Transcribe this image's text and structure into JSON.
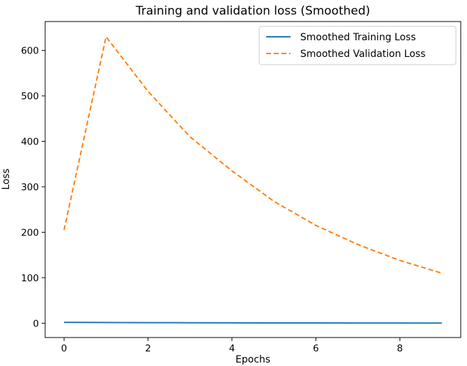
{
  "chart_data": {
    "type": "line",
    "title": "Training and validation loss (Smoothed)",
    "xlabel": "Epochs",
    "ylabel": "Loss",
    "xlim": [
      -0.45,
      9.45
    ],
    "ylim": [
      -31.5,
      663.5
    ],
    "x_ticks": [
      0,
      2,
      4,
      6,
      8
    ],
    "y_ticks": [
      0,
      100,
      200,
      300,
      400,
      500,
      600
    ],
    "x": [
      0,
      1,
      2,
      3,
      4,
      5,
      6,
      7,
      8,
      9
    ],
    "grid": false,
    "legend_position": "top-right",
    "series": [
      {
        "name": "Smoothed Training Loss",
        "color": "#1f77b4",
        "line_style": "solid",
        "values": [
          2.0,
          1.5,
          1.2,
          1.0,
          0.8,
          0.6,
          0.5,
          0.4,
          0.3,
          0.2
        ]
      },
      {
        "name": "Smoothed Validation Loss",
        "color": "#ff7f0e",
        "line_style": "dashed",
        "values": [
          205,
          630,
          510,
          410,
          335,
          268,
          215,
          173,
          138,
          110
        ]
      }
    ]
  }
}
